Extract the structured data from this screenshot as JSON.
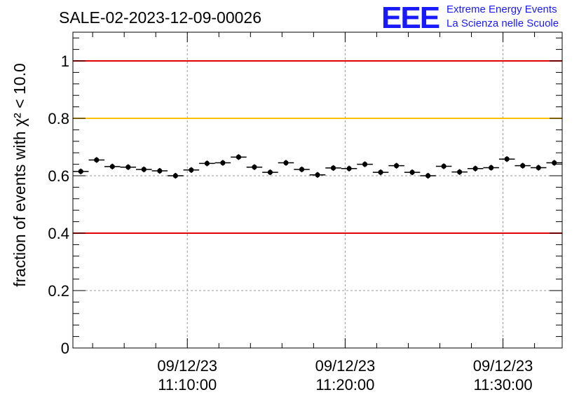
{
  "title": "SALE-02-2023-12-09-00026",
  "logo": {
    "letters": "EEE",
    "line1": "Extreme Energy Events",
    "line2": "La Scienza nelle Scuole",
    "color": "#1a1aff"
  },
  "chart_data": {
    "type": "scatter",
    "title": "SALE-02-2023-12-09-00026",
    "ylabel": "fraction of events with χ² < 10.0",
    "ylim": [
      0,
      1.1
    ],
    "xlim": [
      "2023-12-09 11:02:45",
      "2023-12-09 11:33:45"
    ],
    "xticks": [
      {
        "date": "09/12/23",
        "time": "11:10:00"
      },
      {
        "date": "09/12/23",
        "time": "11:20:00"
      },
      {
        "date": "09/12/23",
        "time": "11:30:00"
      }
    ],
    "yticks": [
      "0",
      "0.2",
      "0.4",
      "0.6",
      "0.8",
      "1"
    ],
    "grid": true,
    "reference_lines": [
      {
        "y": 1.0,
        "color": "#e00000"
      },
      {
        "y": 0.8,
        "color": "#ffc000"
      },
      {
        "y": 0.4,
        "color": "#e00000"
      }
    ],
    "series": [
      {
        "marker_color": "#000000",
        "x": [
          "11:03:15",
          "11:04:15",
          "11:05:15",
          "11:06:15",
          "11:07:15",
          "11:08:15",
          "11:09:15",
          "11:10:15",
          "11:11:15",
          "11:12:15",
          "11:13:15",
          "11:14:15",
          "11:15:15",
          "11:16:15",
          "11:17:15",
          "11:18:15",
          "11:19:15",
          "11:20:15",
          "11:21:15",
          "11:22:15",
          "11:23:15",
          "11:24:15",
          "11:25:15",
          "11:26:15",
          "11:27:15",
          "11:28:15",
          "11:29:15",
          "11:30:15",
          "11:31:15",
          "11:32:15",
          "11:33:15"
        ],
        "y": [
          0.615,
          0.655,
          0.632,
          0.63,
          0.622,
          0.617,
          0.6,
          0.62,
          0.643,
          0.645,
          0.665,
          0.63,
          0.612,
          0.645,
          0.622,
          0.603,
          0.627,
          0.625,
          0.64,
          0.612,
          0.635,
          0.612,
          0.6,
          0.633,
          0.613,
          0.625,
          0.628,
          0.658,
          0.635,
          0.628,
          0.645
        ],
        "yerr": 0.01
      }
    ]
  }
}
